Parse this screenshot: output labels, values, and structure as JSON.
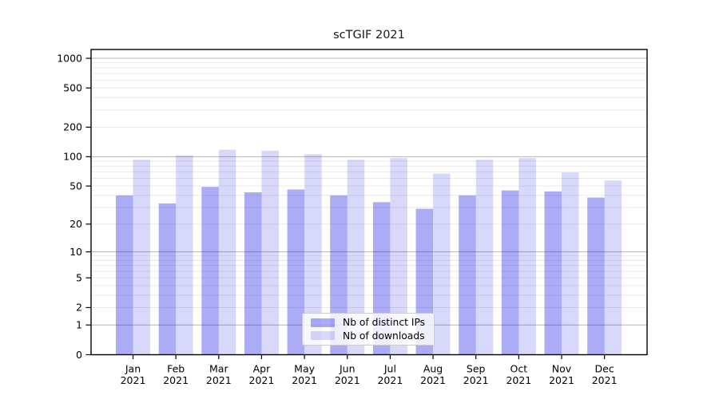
{
  "chart_data": {
    "type": "bar",
    "title": "scTGIF 2021",
    "categories": [
      "Jan",
      "Feb",
      "Mar",
      "Apr",
      "May",
      "Jun",
      "Jul",
      "Aug",
      "Sep",
      "Oct",
      "Nov",
      "Dec"
    ],
    "year_label": "2021",
    "series": [
      {
        "name": "Nb of distinct IPs",
        "fill": "rgba(10,10,230,0.34)",
        "fill_hex_on_white": "#acacf6",
        "values": [
          40,
          33,
          49,
          43,
          46,
          40,
          34,
          29,
          40,
          45,
          44,
          38
        ]
      },
      {
        "name": "Nb of downloads",
        "fill": "rgba(10,10,230,0.16)",
        "fill_hex_on_white": "#d8d8fb",
        "values": [
          93,
          103,
          118,
          115,
          106,
          93,
          97,
          67,
          93,
          97,
          69,
          57
        ]
      }
    ],
    "yticks": [
      0,
      1,
      2,
      5,
      10,
      20,
      50,
      100,
      200,
      500,
      1000
    ],
    "yscale": "log10(x+1)",
    "ylim": [
      0,
      1230
    ],
    "grid": {
      "enabled": true,
      "major_values": [
        1,
        10,
        100,
        1000
      ],
      "minor_values": [
        2,
        3,
        4,
        5,
        6,
        7,
        8,
        9,
        20,
        30,
        40,
        50,
        60,
        70,
        80,
        90,
        200,
        300,
        400,
        500,
        600,
        700,
        800,
        900
      ],
      "major_color": "#b5b5b5",
      "minor_color": "#e7e7e7"
    },
    "axis_color": "#000000",
    "tick_label_color": "#000000",
    "legend_position": "lower-center",
    "background_color": "#ffffff"
  }
}
